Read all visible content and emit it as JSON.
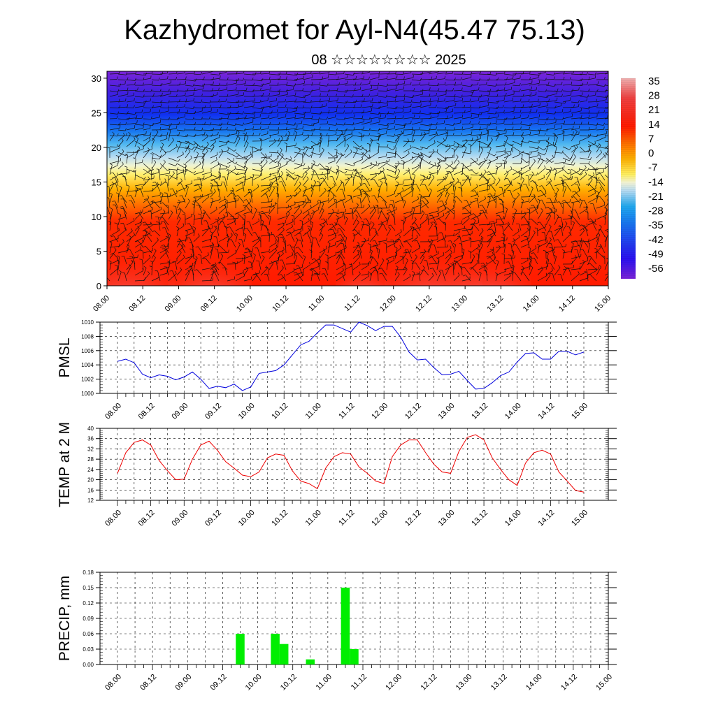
{
  "title": "Kazhydromet for Ayl-N4(45.47 75.13)",
  "subtitle": "08 ☆☆☆☆☆☆☆☆ 2025",
  "chart_data": [
    {
      "type": "heatmap",
      "description_type": "height-time cross section of temperature with wind barbs",
      "y_ticks": [
        "0",
        "5",
        "10",
        "15",
        "20",
        "25",
        "30"
      ],
      "ylim": [
        0,
        31
      ],
      "x_ticks": [
        "08.00",
        "08.12",
        "09.00",
        "09.12",
        "10.00",
        "10.12",
        "11.00",
        "11.12",
        "12.00",
        "12.12",
        "13.00",
        "13.12",
        "14.00",
        "14.12",
        "15.00"
      ],
      "colorbar_labels": [
        "35",
        "28",
        "21",
        "14",
        "7",
        "0",
        "-7",
        "-14",
        "-21",
        "-28",
        "-35",
        "-42",
        "-49",
        "-56"
      ],
      "colorbar_range": [
        -63,
        42
      ],
      "colors": {
        "warm": "#ff1f00",
        "orange": "#ff9a00",
        "yellow": "#ffee60",
        "light_blue": "#b0d8f0",
        "cyan": "#20a8f0",
        "blue": "#1028f0",
        "purple": "#7020d8"
      }
    },
    {
      "type": "line",
      "ylabel": "PMSL",
      "ylim": [
        1000,
        1010
      ],
      "y_ticks": [
        "1000",
        "1002",
        "1004",
        "1006",
        "1008",
        "1010"
      ],
      "x_ticks": [
        "08.00",
        "08.12",
        "09.00",
        "09.12",
        "10.00",
        "10.12",
        "11.00",
        "11.12",
        "12.00",
        "12.12",
        "13.00",
        "13.12",
        "14.00",
        "14.12",
        "15.00"
      ],
      "x_step_hours": 3,
      "series": [
        {
          "color": "#0000dd",
          "values": [
            1004.5,
            1004.8,
            1004.3,
            1002.7,
            1002.2,
            1002.6,
            1002.4,
            1001.9,
            1002.3,
            1003.0,
            1002.0,
            1000.7,
            1001.0,
            1000.8,
            1001.3,
            1000.4,
            1000.9,
            1002.8,
            1003.0,
            1003.2,
            1004.0,
            1005.4,
            1006.8,
            1007.3,
            1008.5,
            1009.6,
            1009.6,
            1009.1,
            1008.6,
            1010.0,
            1009.5,
            1008.8,
            1009.4,
            1009.4,
            1007.9,
            1005.8,
            1004.7,
            1004.8,
            1003.6,
            1002.6,
            1002.7,
            1003.1,
            1001.8,
            1000.6,
            1000.7,
            1001.5,
            1002.5,
            1003.0,
            1004.4,
            1005.6,
            1005.7,
            1004.8,
            1004.8,
            1005.9,
            1005.9,
            1005.4,
            1005.8
          ]
        }
      ]
    },
    {
      "type": "line",
      "ylabel": "TEMP at 2 M",
      "ylim": [
        12,
        40
      ],
      "y_ticks": [
        "12",
        "16",
        "20",
        "24",
        "28",
        "32",
        "36",
        "40"
      ],
      "x_ticks": [
        "08.00",
        "08.12",
        "09.00",
        "09.12",
        "10.00",
        "10.12",
        "11.00",
        "11.12",
        "12.00",
        "12.12",
        "13.00",
        "13.12",
        "14.00",
        "14.12",
        "15.00"
      ],
      "x_step_hours": 3,
      "series": [
        {
          "color": "#ee0000",
          "values": [
            22.5,
            30.5,
            34.5,
            35.5,
            33.5,
            27.5,
            23.5,
            20.0,
            20.2,
            28.0,
            33.5,
            35.0,
            31.5,
            27.0,
            24.5,
            21.8,
            21.2,
            23.0,
            28.5,
            30.0,
            29.5,
            23.5,
            19.5,
            18.5,
            16.5,
            24.5,
            29.0,
            30.5,
            30.0,
            25.0,
            22.5,
            19.5,
            18.5,
            29.0,
            33.5,
            35.5,
            35.5,
            30.5,
            26.0,
            23.0,
            22.5,
            31.0,
            36.5,
            37.5,
            35.5,
            28.5,
            24.0,
            20.0,
            17.8,
            26.5,
            30.5,
            31.5,
            30.0,
            23.0,
            19.5,
            15.8,
            15.2
          ]
        }
      ]
    },
    {
      "type": "bar",
      "ylabel": "PRECIP, mm",
      "ylim": [
        0,
        0.18
      ],
      "y_ticks": [
        "0.00",
        "0.03",
        "0.06",
        "0.09",
        "0.12",
        "0.15",
        "0.18"
      ],
      "x_ticks": [
        "08.00",
        "08.12",
        "09.00",
        "09.12",
        "10.00",
        "10.12",
        "11.00",
        "11.12",
        "12.00",
        "12.12",
        "13.00",
        "13.12",
        "14.00",
        "14.12",
        "15.00"
      ],
      "bar_color": "#00ee00",
      "bars": [
        {
          "hour": 42,
          "value": 0.06
        },
        {
          "hour": 54,
          "value": 0.06
        },
        {
          "hour": 57,
          "value": 0.04
        },
        {
          "hour": 66,
          "value": 0.01
        },
        {
          "hour": 78,
          "value": 0.15
        },
        {
          "hour": 81,
          "value": 0.03
        }
      ]
    }
  ]
}
